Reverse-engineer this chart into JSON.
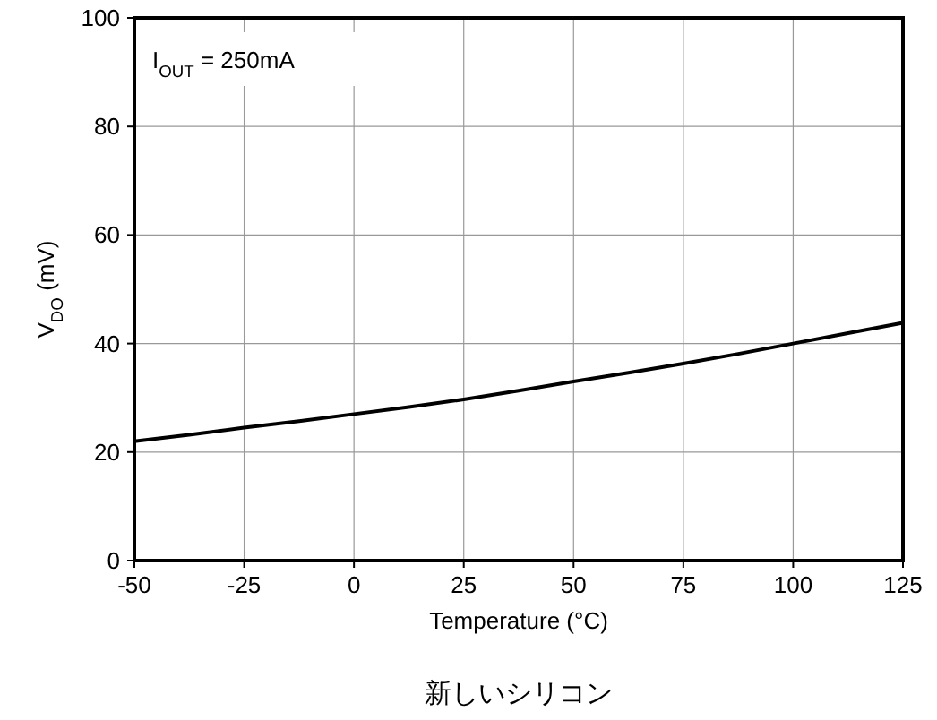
{
  "chart_data": {
    "type": "line",
    "xlabel": "Temperature (°C)",
    "ylabel": "V$_{DO}$ (mV)",
    "annotations": [
      "I$_{OUT}$ = 250mA",
      "新しいシリコン"
    ],
    "x": [
      -50,
      -37.5,
      -25,
      -12.5,
      0,
      12.5,
      25,
      37.5,
      50,
      62.5,
      75,
      87.5,
      100,
      112.5,
      125
    ],
    "series": [
      {
        "color": "#000000",
        "values": [
          22,
          23.2,
          24.5,
          25.7,
          27,
          28.3,
          29.7,
          31.3,
          33,
          34.6,
          36.3,
          38.1,
          40,
          41.9,
          43.8
        ]
      }
    ],
    "xlim": [
      -50,
      125
    ],
    "xticks": [
      -50,
      -25,
      0,
      25,
      50,
      75,
      100,
      125
    ],
    "ylim": [
      0,
      100
    ],
    "yticks": [
      0,
      20,
      40,
      60,
      80,
      100
    ],
    "grid": true,
    "marker": "none",
    "line_style": "solid"
  }
}
